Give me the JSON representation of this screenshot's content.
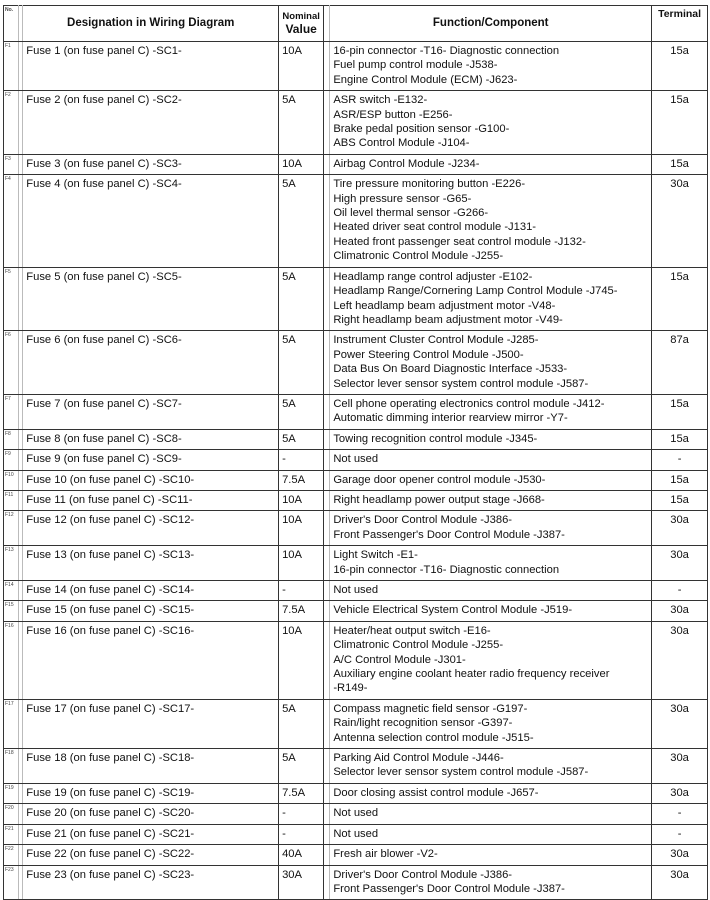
{
  "headers": {
    "no": "No.",
    "designation": "Designation in Wiring Diagram",
    "nominal_1": "Nominal",
    "nominal_2": "Value",
    "function": "Function/Component",
    "terminal": "Terminal"
  },
  "rows": [
    {
      "no": "F1",
      "designation": "Fuse 1 (on fuse panel C) -SC1-",
      "nominal": "10A",
      "functions": [
        "16-pin connector -T16- Diagnostic connection",
        "Fuel pump control module -J538-",
        "Engine Control Module (ECM) -J623-"
      ],
      "terminal": "15a"
    },
    {
      "no": "F2",
      "designation": "Fuse 2 (on fuse panel C) -SC2-",
      "nominal": "5A",
      "functions": [
        "ASR switch -E132-",
        "ASR/ESP button -E256-",
        "Brake pedal position sensor -G100-",
        "ABS Control Module -J104-"
      ],
      "terminal": "15a"
    },
    {
      "no": "F3",
      "designation": "Fuse 3 (on fuse panel C) -SC3-",
      "nominal": "10A",
      "functions": [
        "Airbag Control Module -J234-"
      ],
      "terminal": "15a"
    },
    {
      "no": "F4",
      "designation": "Fuse 4 (on fuse panel C) -SC4-",
      "nominal": "5A",
      "functions": [
        "Tire pressure monitoring button -E226-",
        "High pressure sensor -G65-",
        "Oil level thermal sensor -G266-",
        "Heated driver seat control module -J131-",
        "Heated front passenger seat control module -J132-",
        "Climatronic Control Module -J255-"
      ],
      "terminal": "30a"
    },
    {
      "no": "F5",
      "designation": "Fuse 5 (on fuse panel C) -SC5-",
      "nominal": "5A",
      "functions": [
        "Headlamp range control adjuster -E102-",
        "Headlamp Range/Cornering Lamp Control Module -J745-",
        "Left headlamp beam adjustment motor -V48-",
        "Right headlamp beam adjustment motor -V49-"
      ],
      "terminal": "15a"
    },
    {
      "no": "F6",
      "designation": "Fuse 6 (on fuse panel C) -SC6-",
      "nominal": "5A",
      "functions": [
        "Instrument Cluster Control Module -J285-",
        "Power Steering Control Module -J500-",
        "Data Bus On Board Diagnostic Interface -J533-",
        "Selector lever sensor system control module -J587-"
      ],
      "terminal": "87a"
    },
    {
      "no": "F7",
      "designation": "Fuse 7 (on fuse panel C) -SC7-",
      "nominal": "5A",
      "functions": [
        "Cell phone operating electronics control module -J412-",
        "Automatic dimming interior rearview mirror -Y7-"
      ],
      "terminal": "15a"
    },
    {
      "no": "F8",
      "designation": "Fuse 8 (on fuse panel C) -SC8-",
      "nominal": "5A",
      "functions": [
        "Towing recognition control module -J345-"
      ],
      "terminal": "15a"
    },
    {
      "no": "F9",
      "designation": "Fuse 9 (on fuse panel C) -SC9-",
      "nominal": "-",
      "functions": [
        "Not used"
      ],
      "terminal": "-"
    },
    {
      "no": "F10",
      "designation": "Fuse 10 (on fuse panel C) -SC10-",
      "nominal": "7.5A",
      "functions": [
        "Garage door opener control module -J530-"
      ],
      "terminal": "15a"
    },
    {
      "no": "F11",
      "designation": "Fuse 11 (on fuse panel C) -SC11-",
      "nominal": "10A",
      "functions": [
        "Right headlamp power output stage -J668-"
      ],
      "terminal": "15a"
    },
    {
      "no": "F12",
      "designation": "Fuse 12 (on fuse panel C) -SC12-",
      "nominal": "10A",
      "functions": [
        "Driver's Door Control Module -J386-",
        "Front Passenger's Door Control Module -J387-"
      ],
      "terminal": "30a"
    },
    {
      "no": "F13",
      "designation": "Fuse 13 (on fuse panel C) -SC13-",
      "nominal": "10A",
      "functions": [
        "Light Switch -E1-",
        "16-pin connector -T16- Diagnostic connection"
      ],
      "terminal": "30a"
    },
    {
      "no": "F14",
      "designation": "Fuse 14 (on fuse panel C) -SC14-",
      "nominal": "-",
      "functions": [
        "Not used"
      ],
      "terminal": "-"
    },
    {
      "no": "F15",
      "designation": "Fuse 15 (on fuse panel C) -SC15-",
      "nominal": "7.5A",
      "functions": [
        "Vehicle Electrical System Control Module -J519-"
      ],
      "terminal": "30a"
    },
    {
      "no": "F16",
      "designation": "Fuse 16 (on fuse panel C) -SC16-",
      "nominal": "10A",
      "functions": [
        "Heater/heat output switch -E16-",
        "Climatronic Control Module -J255-",
        "A/C Control Module -J301-",
        "Auxiliary engine coolant heater radio frequency receiver",
        "-R149-"
      ],
      "terminal": "30a"
    },
    {
      "no": "F17",
      "designation": "Fuse 17 (on fuse panel C) -SC17-",
      "nominal": "5A",
      "functions": [
        "Compass magnetic field sensor -G197-",
        "Rain/light recognition sensor -G397-",
        "Antenna selection control module -J515-"
      ],
      "terminal": "30a"
    },
    {
      "no": "F18",
      "designation": "Fuse 18 (on fuse panel C) -SC18-",
      "nominal": "5A",
      "functions": [
        "Parking Aid Control Module -J446-",
        "Selector lever sensor system control module -J587-"
      ],
      "terminal": "30a"
    },
    {
      "no": "F19",
      "designation": "Fuse 19 (on fuse panel C) -SC19-",
      "nominal": "7.5A",
      "functions": [
        "Door closing assist control module -J657-"
      ],
      "terminal": "30a"
    },
    {
      "no": "F20",
      "designation": "Fuse 20 (on fuse panel C) -SC20-",
      "nominal": "-",
      "functions": [
        "Not used"
      ],
      "terminal": "-"
    },
    {
      "no": "F21",
      "designation": "Fuse 21 (on fuse panel C) -SC21-",
      "nominal": "-",
      "functions": [
        "Not used"
      ],
      "terminal": "-"
    },
    {
      "no": "F22",
      "designation": "Fuse 22 (on fuse panel C) -SC22-",
      "nominal": "40A",
      "functions": [
        "Fresh air blower -V2-"
      ],
      "terminal": "30a"
    },
    {
      "no": "F23",
      "designation": "Fuse 23 (on fuse panel C) -SC23-",
      "nominal": "30A",
      "functions": [
        "Driver's Door Control Module -J386-",
        "Front Passenger's Door Control Module -J387-"
      ],
      "terminal": "30a"
    }
  ]
}
